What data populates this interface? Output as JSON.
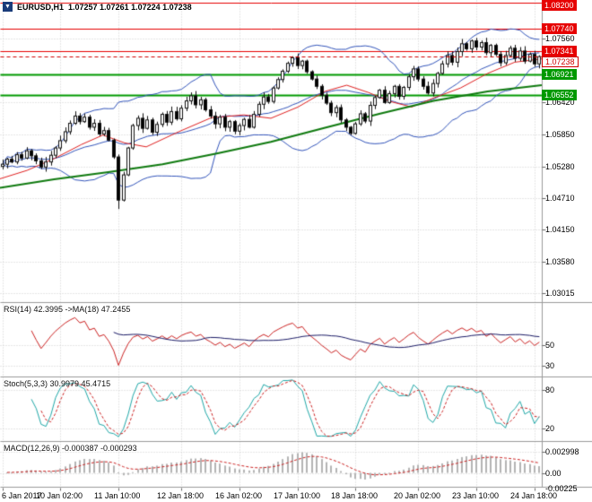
{
  "header": {
    "icon_glyph": "▼",
    "symbol_period": "EURUSD,H1",
    "ohlc": "1.07257 1.07261 1.07224 1.07238"
  },
  "colors": {
    "background": "#ffffff",
    "grid": "#cfcfcf",
    "separator": "#9a9a9a"
  },
  "time_axis": {
    "labels": [
      {
        "text": "6 Jan 2017",
        "index": 0
      },
      {
        "text": "10 Jan 02:00",
        "index": 12
      },
      {
        "text": "11 Jan 10:00",
        "index": 24
      },
      {
        "text": "12 Jan 18:00",
        "index": 37
      },
      {
        "text": "16 Jan 02:00",
        "index": 49
      },
      {
        "text": "17 Jan 10:00",
        "index": 61
      },
      {
        "text": "18 Jan 18:00",
        "index": 73
      },
      {
        "text": "20 Jan 02:00",
        "index": 86
      },
      {
        "text": "23 Jan 10:00",
        "index": 98
      },
      {
        "text": "24 Jan 18:00",
        "index": 110
      }
    ]
  },
  "chart_data": [
    {
      "type": "candlestick",
      "title": "EURUSD,H1",
      "ohlc_display": "1.07257 1.07261 1.07224 1.07238",
      "ylim": [
        1.0286,
        1.0825
      ],
      "open_first": 1.0528,
      "closes": [
        1.0532,
        1.0541,
        1.0536,
        1.0549,
        1.0543,
        1.0556,
        1.0547,
        1.0538,
        1.0527,
        1.0536,
        1.0548,
        1.0561,
        1.0574,
        1.059,
        1.0605,
        1.0618,
        1.0608,
        1.0616,
        1.0598,
        1.0605,
        1.0586,
        1.0592,
        1.0575,
        1.0545,
        1.0468,
        1.0513,
        1.0561,
        1.0601,
        1.0614,
        1.0596,
        1.0611,
        1.0589,
        1.0603,
        1.0621,
        1.0607,
        1.0626,
        1.0613,
        1.0632,
        1.0645,
        1.0654,
        1.0638,
        1.0647,
        1.0629,
        1.0618,
        1.0604,
        1.0616,
        1.0598,
        1.0608,
        1.0591,
        1.0601,
        1.0612,
        1.0598,
        1.0621,
        1.0639,
        1.0652,
        1.0644,
        1.0668,
        1.0683,
        1.0698,
        1.0712,
        1.0722,
        1.0708,
        1.0716,
        1.0697,
        1.0684,
        1.0671,
        1.0655,
        1.0641,
        1.0624,
        1.0633,
        1.0611,
        1.0598,
        1.0587,
        1.0604,
        1.0622,
        1.0609,
        1.0637,
        1.0651,
        1.0664,
        1.0642,
        1.0658,
        1.0671,
        1.0653,
        1.0669,
        1.0688,
        1.0702,
        1.0684,
        1.0671,
        1.0659,
        1.0676,
        1.0694,
        1.0711,
        1.0726,
        1.0714,
        1.0733,
        1.0747,
        1.0738,
        1.0752,
        1.0741,
        1.0749,
        1.0731,
        1.0744,
        1.0728,
        1.0713,
        1.0726,
        1.0739,
        1.0721,
        1.0734,
        1.0716,
        1.0728,
        1.0711,
        1.0724
      ],
      "spike": {
        "index": 24,
        "low": 1.0452
      },
      "colors": {
        "outline": "#111111",
        "up": "#ffffff",
        "down": "#000000"
      },
      "y_ticks": [
        {
          "label": "1.07560",
          "value": 1.0756
        },
        {
          "label": "1.06420",
          "value": 1.0642
        },
        {
          "label": "1.05850",
          "value": 1.0585
        },
        {
          "label": "1.05280",
          "value": 1.0528
        },
        {
          "label": "1.04710",
          "value": 1.0471
        },
        {
          "label": "1.04150",
          "value": 1.0415
        },
        {
          "label": "1.03580",
          "value": 1.0358
        },
        {
          "label": "1.03015",
          "value": 1.03015
        }
      ],
      "levels": [
        {
          "value": 1.082,
          "label": "1.08200",
          "color": "#e60000",
          "width": 1,
          "kind": "resistance"
        },
        {
          "value": 1.0774,
          "label": "1.07740",
          "color": "#e60000",
          "width": 1,
          "kind": "resistance"
        },
        {
          "value": 1.07341,
          "label": "1.07341",
          "color": "#e60000",
          "width": 1,
          "kind": "resistance"
        },
        {
          "value": 1.06921,
          "label": "1.06921",
          "color": "#009900",
          "width": 2,
          "kind": "support"
        },
        {
          "value": 1.06552,
          "label": "1.06552",
          "color": "#009900",
          "width": 2,
          "kind": "support"
        }
      ],
      "current_price": {
        "value": 1.07238,
        "label": "1.07238",
        "color": "#d00000"
      },
      "overlays": {
        "bollinger": {
          "period": 20,
          "deviation": 2,
          "color": "#3355bb"
        },
        "ma_red": {
          "color": "#e02020",
          "points": [
            [
              0,
              1.0506
            ],
            [
              0.05,
              1.0521
            ],
            [
              0.1,
              1.0542
            ],
            [
              0.15,
              1.0567
            ],
            [
              0.19,
              1.0584
            ],
            [
              0.23,
              1.057
            ],
            [
              0.27,
              1.0563
            ],
            [
              0.33,
              1.059
            ],
            [
              0.39,
              1.0615
            ],
            [
              0.45,
              1.062
            ],
            [
              0.5,
              1.0614
            ],
            [
              0.55,
              1.0634
            ],
            [
              0.6,
              1.0662
            ],
            [
              0.64,
              1.0673
            ],
            [
              0.68,
              1.066
            ],
            [
              0.72,
              1.0644
            ],
            [
              0.76,
              1.0634
            ],
            [
              0.8,
              1.065
            ],
            [
              0.85,
              1.0668
            ],
            [
              0.9,
              1.0694
            ],
            [
              0.95,
              1.0714
            ],
            [
              1,
              1.072
            ]
          ]
        },
        "ma_green": {
          "color": "#0f7a0f",
          "points": [
            [
              0,
              1.049
            ],
            [
              0.1,
              1.0505
            ],
            [
              0.2,
              1.0518
            ],
            [
              0.3,
              1.0532
            ],
            [
              0.4,
              1.0551
            ],
            [
              0.5,
              1.0572
            ],
            [
              0.6,
              1.0597
            ],
            [
              0.7,
              1.0622
            ],
            [
              0.8,
              1.0645
            ],
            [
              0.9,
              1.0662
            ],
            [
              1,
              1.0673
            ]
          ]
        }
      }
    },
    {
      "type": "line",
      "label": "RSI(14) 42.3995 ->MA(18) 47.2455",
      "period": 14,
      "ma_period": 18,
      "current": 42.3995,
      "ma_current": 47.2455,
      "ylim": [
        20,
        90
      ],
      "y_ticks": [
        {
          "label": "50",
          "value": 50
        },
        {
          "label": "30",
          "value": 30
        }
      ],
      "colors": {
        "rsi": "#cc2222",
        "ma": "#1a1a66"
      }
    },
    {
      "type": "line",
      "label": "Stoch(5,3,3) 30.9979 45.4715",
      "k_period": 5,
      "d_period": 3,
      "slowing": 3,
      "current_k": 30.9979,
      "current_d": 45.4715,
      "ylim": [
        0,
        100
      ],
      "y_ticks": [
        {
          "label": "80",
          "value": 80
        },
        {
          "label": "20",
          "value": 20
        }
      ],
      "colors": {
        "k": "#1fa8a8",
        "d": "#cc2222"
      }
    },
    {
      "type": "histogram",
      "label": "MACD(12,26,9) -0.000387 -0.000293",
      "fast": 12,
      "slow": 26,
      "signal_period": 9,
      "current_macd": -0.000387,
      "current_signal": -0.000293,
      "ylim": [
        -0.00195,
        0.00435
      ],
      "y_ticks": [
        {
          "label": "0.002998",
          "value": 0.002998
        },
        {
          "label": "0.00",
          "value": 0
        },
        {
          "label": "-0.00225",
          "value": -0.00225
        }
      ],
      "colors": {
        "hist": "#b4b4b4",
        "signal": "#cc2222"
      }
    }
  ]
}
